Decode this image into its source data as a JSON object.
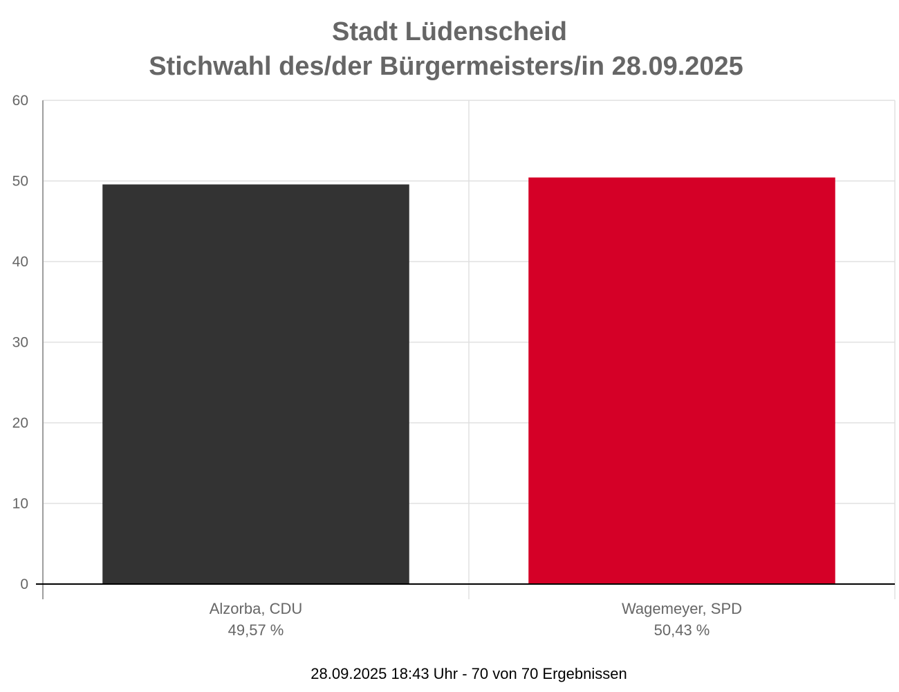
{
  "chart_data": {
    "type": "bar",
    "title": [
      "Stadt Lüdenscheid",
      "Stichwahl des/der Bürgermeisters/in 28.09.2025"
    ],
    "categories": [
      "Alzorba, CDU",
      "Wagemeyer, SPD"
    ],
    "value_labels": [
      "49,57 %",
      "50,43 %"
    ],
    "values": [
      49.57,
      50.43
    ],
    "colors": [
      "#333333",
      "#d50027"
    ],
    "ylim": [
      0,
      60
    ],
    "yticks": [
      0,
      10,
      20,
      30,
      40,
      50,
      60
    ],
    "grid": true,
    "footer": "28.09.2025 18:43 Uhr - 70 von 70 Ergebnissen"
  }
}
